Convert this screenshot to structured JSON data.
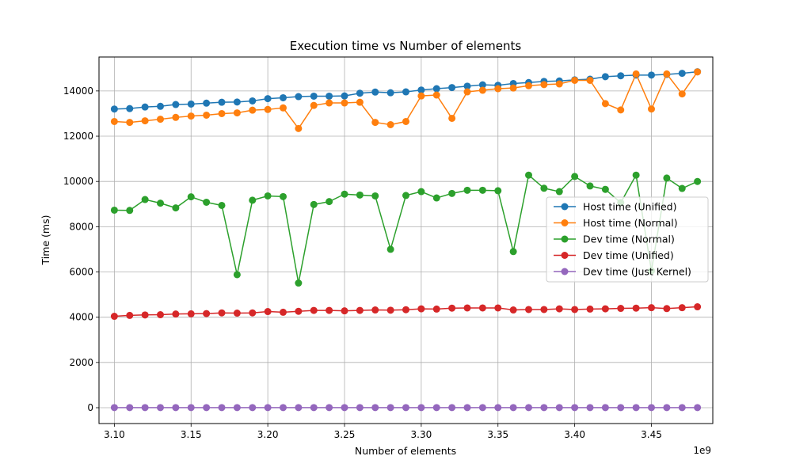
{
  "chart_data": {
    "type": "line",
    "title": "Execution time vs Number of elements",
    "xlabel": "Number of elements",
    "ylabel": "Time (ms)",
    "x_offset_label": "1e9",
    "xlim": [
      3.09,
      3.49
    ],
    "ylim": [
      -700,
      15500
    ],
    "xticks": [
      3.1,
      3.15,
      3.2,
      3.25,
      3.3,
      3.35,
      3.4,
      3.45
    ],
    "xtick_labels": [
      "3.10",
      "3.15",
      "3.20",
      "3.25",
      "3.30",
      "3.35",
      "3.40",
      "3.45"
    ],
    "yticks": [
      0,
      2000,
      4000,
      6000,
      8000,
      10000,
      12000,
      14000
    ],
    "ytick_labels": [
      "0",
      "2000",
      "4000",
      "6000",
      "8000",
      "10000",
      "12000",
      "14000"
    ],
    "grid": true,
    "legend_position": "center-right",
    "x": [
      3.1,
      3.11,
      3.12,
      3.13,
      3.14,
      3.15,
      3.16,
      3.17,
      3.18,
      3.19,
      3.2,
      3.21,
      3.22,
      3.23,
      3.24,
      3.25,
      3.26,
      3.27,
      3.28,
      3.29,
      3.3,
      3.31,
      3.32,
      3.33,
      3.34,
      3.35,
      3.36,
      3.37,
      3.38,
      3.39,
      3.4,
      3.41,
      3.42,
      3.43,
      3.44,
      3.45,
      3.46,
      3.47,
      3.48
    ],
    "series": [
      {
        "name": "Host time (Unified)",
        "color": "#1f77b4",
        "values": [
          13200,
          13220,
          13290,
          13320,
          13400,
          13420,
          13460,
          13500,
          13510,
          13560,
          13660,
          13700,
          13750,
          13770,
          13770,
          13780,
          13900,
          13950,
          13920,
          13960,
          14040,
          14100,
          14150,
          14210,
          14270,
          14250,
          14330,
          14370,
          14420,
          14440,
          14490,
          14520,
          14630,
          14670,
          14700,
          14700,
          14730,
          14780,
          14850
        ]
      },
      {
        "name": "Host time (Normal)",
        "color": "#ff7f0e",
        "values": [
          12650,
          12610,
          12680,
          12750,
          12830,
          12890,
          12930,
          13000,
          13030,
          13150,
          13180,
          13250,
          12340,
          13360,
          13470,
          13470,
          13500,
          12610,
          12510,
          12650,
          13780,
          13820,
          12790,
          13960,
          14030,
          14100,
          14130,
          14230,
          14280,
          14310,
          14470,
          14470,
          13440,
          13160,
          14750,
          13200,
          14750,
          13870,
          14840
        ]
      },
      {
        "name": "Dev time (Normal)",
        "color": "#2ca02c",
        "values": [
          8730,
          8720,
          9200,
          9040,
          8830,
          9320,
          9080,
          8940,
          5880,
          9170,
          9360,
          9330,
          5510,
          8980,
          9110,
          9440,
          9400,
          9360,
          7000,
          9380,
          9550,
          9270,
          9470,
          9610,
          9610,
          9590,
          6900,
          10280,
          9700,
          9550,
          10220,
          9800,
          9650,
          9060,
          10280,
          6050,
          10150,
          9690,
          10000
        ]
      },
      {
        "name": "Dev time (Unified)",
        "color": "#d62728",
        "values": [
          4040,
          4080,
          4100,
          4110,
          4140,
          4150,
          4160,
          4190,
          4180,
          4190,
          4250,
          4220,
          4260,
          4300,
          4300,
          4280,
          4300,
          4320,
          4310,
          4330,
          4370,
          4360,
          4400,
          4410,
          4410,
          4410,
          4320,
          4340,
          4340,
          4370,
          4340,
          4360,
          4370,
          4390,
          4400,
          4420,
          4380,
          4420,
          4460
        ]
      },
      {
        "name": "Dev time (Just Kernel)",
        "color": "#9467bd",
        "values": [
          5,
          5,
          5,
          5,
          5,
          5,
          5,
          5,
          5,
          5,
          5,
          5,
          5,
          5,
          5,
          5,
          5,
          5,
          5,
          5,
          5,
          5,
          5,
          5,
          5,
          5,
          5,
          5,
          5,
          5,
          5,
          5,
          5,
          5,
          5,
          5,
          5,
          5,
          5
        ]
      }
    ]
  }
}
